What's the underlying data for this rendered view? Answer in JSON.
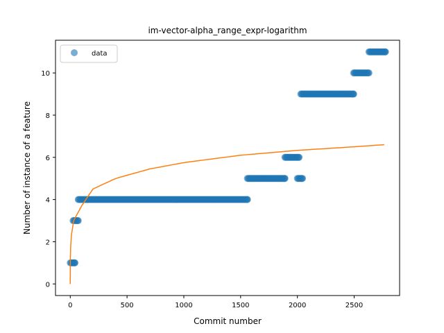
{
  "chart_data": {
    "type": "scatter",
    "title": "im-vector-alpha_range_expr-logarithm",
    "xlabel": "Commit number",
    "ylabel": "Number of instance of a feature",
    "xlim": [
      -130,
      2900
    ],
    "ylim": [
      -0.55,
      11.55
    ],
    "xticks": [
      0,
      500,
      1000,
      1500,
      2000,
      2500
    ],
    "yticks": [
      0,
      2,
      4,
      6,
      8,
      10
    ],
    "legend": {
      "position": "top-left",
      "entries": [
        "data"
      ]
    },
    "colors": {
      "data": "#1f77b4",
      "fit": "#ff7f0e"
    },
    "series": [
      {
        "name": "data",
        "kind": "scatter",
        "segments": [
          {
            "x_start": 0,
            "x_end": 40,
            "y": 1
          },
          {
            "x_start": 25,
            "x_end": 70,
            "y": 3
          },
          {
            "x_start": 70,
            "x_end": 1560,
            "y": 4
          },
          {
            "x_start": 1560,
            "x_end": 1890,
            "y": 5
          },
          {
            "x_start": 1890,
            "x_end": 2015,
            "y": 6
          },
          {
            "x_start": 2000,
            "x_end": 2045,
            "y": 5
          },
          {
            "x_start": 2030,
            "x_end": 2495,
            "y": 9
          },
          {
            "x_start": 2495,
            "x_end": 2630,
            "y": 10
          },
          {
            "x_start": 2630,
            "x_end": 2775,
            "y": 11
          }
        ]
      },
      {
        "kind": "line",
        "x_start": 0,
        "x_end": 2765,
        "points": [
          [
            0,
            0
          ],
          [
            1,
            1.2
          ],
          [
            3,
            1.7
          ],
          [
            10,
            2.3
          ],
          [
            30,
            3.0
          ],
          [
            100,
            3.7
          ],
          [
            200,
            4.5
          ],
          [
            400,
            5.0
          ],
          [
            700,
            5.45
          ],
          [
            1000,
            5.75
          ],
          [
            1500,
            6.1
          ],
          [
            2000,
            6.33
          ],
          [
            2500,
            6.5
          ],
          [
            2765,
            6.6
          ]
        ]
      }
    ]
  }
}
